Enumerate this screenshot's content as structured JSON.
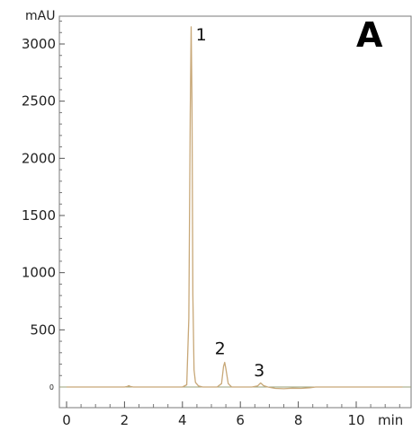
{
  "chart_data": {
    "type": "line",
    "panel_label": "A",
    "ylabel": "mAU",
    "xlabel": "min",
    "xlim": [
      0,
      11.6
    ],
    "ylim": [
      -80,
      3250
    ],
    "x_ticks": [
      "0",
      "2",
      "4",
      "6",
      "8",
      "10"
    ],
    "x_tick_values": [
      0,
      2,
      4,
      6,
      8,
      10
    ],
    "y_ticks": [
      "500",
      "1000",
      "1500",
      "2000",
      "2500",
      "3000"
    ],
    "y_tick_values": [
      500,
      1000,
      1500,
      2000,
      2500,
      3000
    ],
    "y_zero_label": "0",
    "line_color": "#c8a878",
    "series": [
      {
        "x": [
          0,
          2.0,
          2.1,
          2.15,
          2.2,
          2.3,
          4.0,
          4.15,
          4.22,
          4.27,
          4.3,
          4.33,
          4.36,
          4.4,
          4.45,
          4.55,
          4.7,
          5.2,
          5.35,
          5.42,
          5.46,
          5.5,
          5.58,
          5.7,
          6.4,
          6.6,
          6.7,
          6.8,
          6.95,
          7.2,
          7.5,
          7.8,
          8.1,
          8.4,
          8.6,
          11.6
        ],
        "y": [
          0,
          0,
          5,
          12,
          5,
          0,
          0,
          20,
          600,
          2400,
          3150,
          2500,
          800,
          150,
          40,
          10,
          0,
          0,
          30,
          180,
          215,
          160,
          30,
          0,
          0,
          10,
          35,
          12,
          0,
          -12,
          -15,
          -10,
          -12,
          -6,
          0,
          0
        ]
      }
    ],
    "annotations": [
      {
        "text": "1",
        "x": 4.65,
        "y": 3030
      },
      {
        "text": "2",
        "x": 5.3,
        "y": 285
      },
      {
        "text": "3",
        "x": 6.65,
        "y": 95
      }
    ],
    "grid": false,
    "legend": "none"
  }
}
